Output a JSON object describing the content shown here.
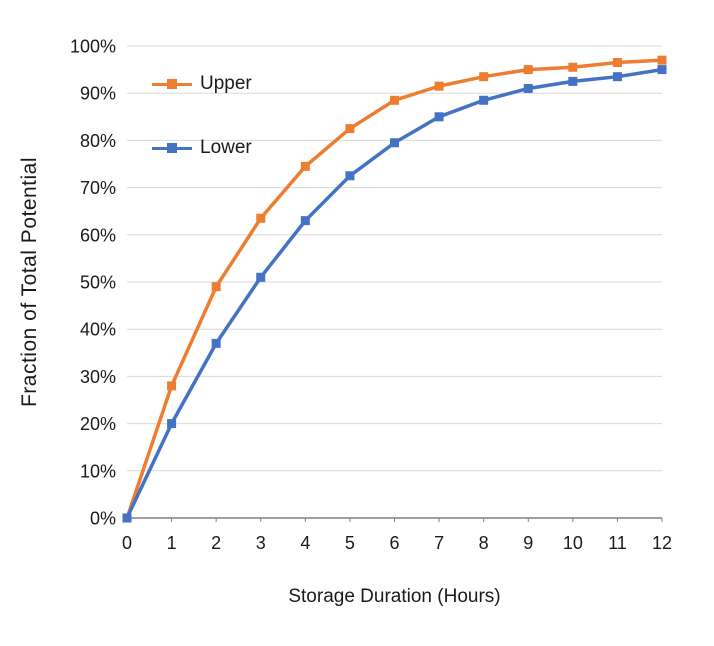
{
  "chart_data": {
    "type": "line",
    "title": "",
    "xlabel": "Storage Duration (Hours)",
    "ylabel": "Fraction of Total Potential",
    "x": [
      0,
      1,
      2,
      3,
      4,
      5,
      6,
      7,
      8,
      9,
      10,
      11,
      12
    ],
    "series": [
      {
        "name": "Upper",
        "color": "#ED7D31",
        "values": [
          0,
          28,
          49,
          63.5,
          74.5,
          82.5,
          88.5,
          91.5,
          93.5,
          95,
          95.5,
          96.5,
          97
        ]
      },
      {
        "name": "Lower",
        "color": "#4472C4",
        "values": [
          0,
          20,
          37,
          51,
          63,
          72.5,
          79.5,
          85,
          88.5,
          91,
          92.5,
          93.5,
          95
        ]
      }
    ],
    "ylim": [
      0,
      100
    ],
    "ytick_step": 10,
    "ytick_suffix": "%",
    "xlim": [
      0,
      12
    ],
    "grid": true,
    "legend_position": "top-left",
    "colors": {
      "gridline": "#d9d9d9",
      "axis": "#808080",
      "text": "#1a1a1a"
    }
  }
}
